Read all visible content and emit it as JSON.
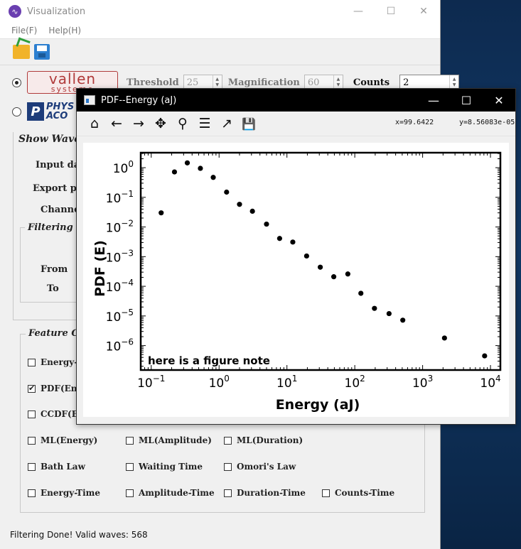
{
  "main_window": {
    "title": "Visualization",
    "controls": {
      "minimize": "—",
      "maximize": "☐",
      "close": "✕"
    },
    "menu": [
      "File(F)",
      "Help(H)"
    ],
    "toolbar": [
      {
        "icon": "open-folder-icon"
      },
      {
        "icon": "save-icon"
      }
    ]
  },
  "device": {
    "vallen": {
      "selected": true,
      "logo_line1": "vallen",
      "logo_line2": "systeme"
    },
    "pac": {
      "selected": false,
      "logo_mark": "P",
      "logo_line1": "PHYS",
      "logo_line2": "ACO"
    }
  },
  "params": {
    "threshold_label": "Threshold",
    "threshold_value": "25",
    "magnification_label": "Magnification",
    "magnification_value": "60",
    "counts_label": "Counts",
    "counts_value": "2"
  },
  "waveform_section": {
    "title": "Show Wavef",
    "input_label": "Input dat",
    "export_label": "Export pat",
    "channel_label": "Channel",
    "filtering_title": "Filtering P",
    "from_label": "From",
    "to_label": "To"
  },
  "feature_section": {
    "title": "Feature C",
    "items": [
      {
        "label": "Energy-A",
        "checked": false
      },
      {
        "label": "PDF(Ener",
        "checked": true
      },
      {
        "label": "CCDF(Ene",
        "checked": false
      },
      {
        "label": "ML(Energy)",
        "checked": false
      },
      {
        "label": "ML(Amplitude)",
        "checked": false
      },
      {
        "label": "ML(Duration)",
        "checked": false
      },
      {
        "label": "Bath Law",
        "checked": false
      },
      {
        "label": "Waiting Time",
        "checked": false
      },
      {
        "label": "Omori's Law",
        "checked": false
      },
      {
        "label": "Energy-Time",
        "checked": false
      },
      {
        "label": "Amplitude-Time",
        "checked": false
      },
      {
        "label": "Duration-Time",
        "checked": false
      },
      {
        "label": "Counts-Time",
        "checked": false
      }
    ]
  },
  "status": "Filtering Done! Valid waves: 568",
  "plot_window": {
    "title": "PDF--Energy (aJ)",
    "controls": {
      "minimize": "—",
      "maximize": "☐",
      "close": "✕"
    },
    "tools": [
      {
        "icon": "home-icon",
        "glyph": "⌂"
      },
      {
        "icon": "back-arrow-icon",
        "glyph": "←"
      },
      {
        "icon": "forward-arrow-icon",
        "glyph": "→"
      },
      {
        "icon": "pan-icon",
        "glyph": "✥"
      },
      {
        "icon": "zoom-icon",
        "glyph": "⚲"
      },
      {
        "icon": "configure-subplots-icon",
        "glyph": "☰"
      },
      {
        "icon": "edit-axis-icon",
        "glyph": "↗"
      },
      {
        "icon": "save-figure-icon",
        "glyph": "💾"
      }
    ],
    "coord_x": "x=99.6422",
    "coord_y": "y=8.56083e-05"
  },
  "chart_data": {
    "type": "scatter",
    "xlabel": "Energy (aJ)",
    "ylabel": "PDF (E)",
    "note": "here is a figure note",
    "xscale": "log",
    "yscale": "log",
    "xlim": [
      0.07,
      14000
    ],
    "ylim": [
      1.5e-07,
      3.2
    ],
    "xticks": [
      0.1,
      1,
      10,
      100,
      1000,
      10000
    ],
    "xtick_labels": [
      {
        "base": "10",
        "exp": "−1"
      },
      {
        "base": "10",
        "exp": "0"
      },
      {
        "base": "10",
        "exp": "1"
      },
      {
        "base": "10",
        "exp": "2"
      },
      {
        "base": "10",
        "exp": "3"
      },
      {
        "base": "10",
        "exp": "4"
      }
    ],
    "yticks": [
      1e-06,
      1e-05,
      0.0001,
      0.001,
      0.01,
      0.1,
      1
    ],
    "ytick_labels": [
      {
        "base": "10",
        "exp": "−6"
      },
      {
        "base": "10",
        "exp": "−5"
      },
      {
        "base": "10",
        "exp": "−4"
      },
      {
        "base": "10",
        "exp": "−3"
      },
      {
        "base": "10",
        "exp": "−2"
      },
      {
        "base": "10",
        "exp": "−1"
      },
      {
        "base": "10",
        "exp": "0"
      }
    ],
    "x": [
      0.14,
      0.22,
      0.34,
      0.53,
      0.82,
      1.29,
      2.0,
      3.1,
      5.0,
      7.8,
      12.2,
      19.5,
      31,
      49,
      79,
      123,
      195,
      320,
      510,
      2100,
      8200
    ],
    "y": [
      0.03,
      0.72,
      1.45,
      0.95,
      0.47,
      0.15,
      0.058,
      0.034,
      0.0125,
      0.0041,
      0.0031,
      0.00105,
      0.00044,
      0.00021,
      0.00026,
      5.8e-05,
      1.8e-05,
      1.2e-05,
      7.2e-06,
      1.8e-06,
      4.5e-07
    ]
  }
}
